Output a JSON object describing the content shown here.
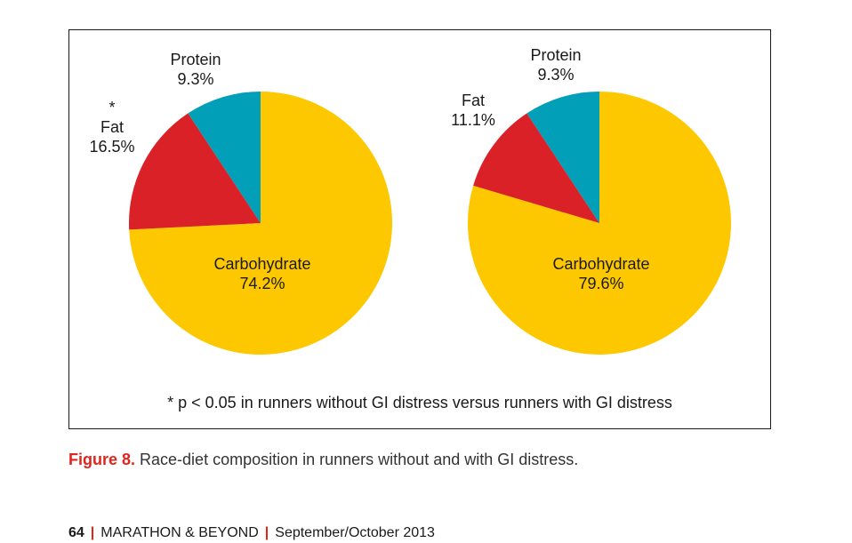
{
  "chart_data": [
    {
      "type": "pie",
      "slices": [
        {
          "label": "Carbohydrate",
          "value": 74.2,
          "display": "74.2%",
          "color": "#fdc800"
        },
        {
          "label": "Fat",
          "value": 16.5,
          "display": "16.5%",
          "color": "#db2128",
          "marker": "*"
        },
        {
          "label": "Protein",
          "value": 9.3,
          "display": "9.3%",
          "color": "#019fb8"
        }
      ]
    },
    {
      "type": "pie",
      "slices": [
        {
          "label": "Carbohydrate",
          "value": 79.6,
          "display": "79.6%",
          "color": "#fdc800"
        },
        {
          "label": "Fat",
          "value": 11.1,
          "display": "11.1%",
          "color": "#db2128"
        },
        {
          "label": "Protein",
          "value": 9.3,
          "display": "9.3%",
          "color": "#019fb8"
        }
      ]
    }
  ],
  "footnote": "* p < 0.05 in runners without GI distress versus runners with GI distress",
  "caption": {
    "figure_number": "Figure 8.",
    "text": "Race-diet composition in runners without and with GI distress."
  },
  "footer": {
    "page_number": "64",
    "separator": "|",
    "publication": "MARATHON & BEYOND",
    "issue": "September/October 2013"
  }
}
